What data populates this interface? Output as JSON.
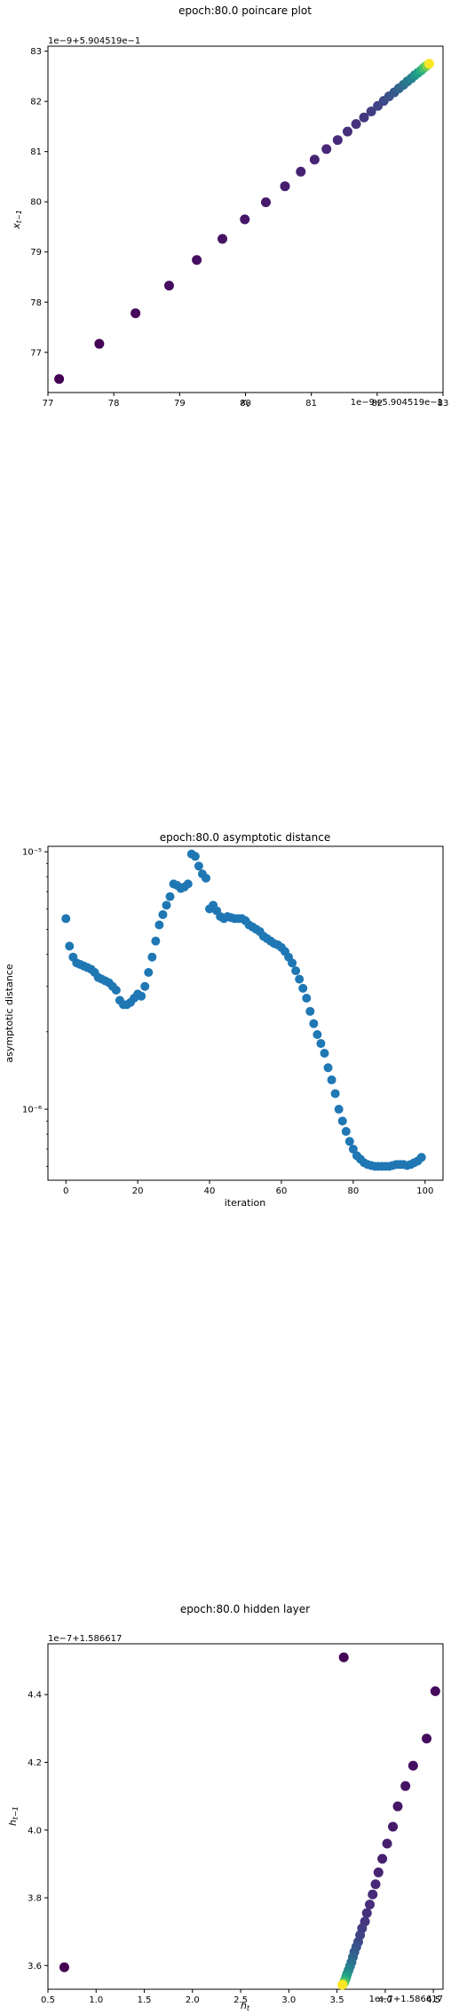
{
  "chart_data": [
    {
      "type": "scatter",
      "title": "epoch:80.0 poincare plot",
      "xlabel": "x_t",
      "ylabel": "x_{t-1}",
      "offset_text_x": "1e−9+5.904519e−1",
      "offset_text_y": "1e−9+5.904519e−1",
      "xlim": [
        77.0,
        83.0
      ],
      "ylim": [
        76.2,
        83.1
      ],
      "xticks": [
        77,
        78,
        79,
        80,
        81,
        82,
        83
      ],
      "yticks": [
        77,
        78,
        79,
        80,
        81,
        82,
        83
      ],
      "grid": false,
      "colormap": "viridis",
      "points": [
        {
          "x": 77.17,
          "y": 76.47,
          "c": 0.0
        },
        {
          "x": 77.78,
          "y": 77.17,
          "c": 0.01
        },
        {
          "x": 78.33,
          "y": 77.78,
          "c": 0.02
        },
        {
          "x": 78.84,
          "y": 78.33,
          "c": 0.03
        },
        {
          "x": 79.26,
          "y": 78.84,
          "c": 0.04
        },
        {
          "x": 79.65,
          "y": 79.26,
          "c": 0.05
        },
        {
          "x": 79.99,
          "y": 79.65,
          "c": 0.06
        },
        {
          "x": 80.31,
          "y": 79.99,
          "c": 0.07
        },
        {
          "x": 80.6,
          "y": 80.31,
          "c": 0.08
        },
        {
          "x": 80.84,
          "y": 80.6,
          "c": 0.09
        },
        {
          "x": 81.05,
          "y": 80.84,
          "c": 0.1
        },
        {
          "x": 81.23,
          "y": 81.05,
          "c": 0.11
        },
        {
          "x": 81.4,
          "y": 81.23,
          "c": 0.12
        },
        {
          "x": 81.55,
          "y": 81.4,
          "c": 0.13
        },
        {
          "x": 81.68,
          "y": 81.55,
          "c": 0.14
        },
        {
          "x": 81.8,
          "y": 81.68,
          "c": 0.16
        },
        {
          "x": 81.91,
          "y": 81.8,
          "c": 0.18
        },
        {
          "x": 82.01,
          "y": 81.91,
          "c": 0.2
        },
        {
          "x": 82.1,
          "y": 82.01,
          "c": 0.22
        },
        {
          "x": 82.18,
          "y": 82.1,
          "c": 0.25
        },
        {
          "x": 82.26,
          "y": 82.18,
          "c": 0.28
        },
        {
          "x": 82.33,
          "y": 82.26,
          "c": 0.32
        },
        {
          "x": 82.4,
          "y": 82.33,
          "c": 0.36
        },
        {
          "x": 82.46,
          "y": 82.4,
          "c": 0.4
        },
        {
          "x": 82.52,
          "y": 82.46,
          "c": 0.45
        },
        {
          "x": 82.57,
          "y": 82.52,
          "c": 0.5
        },
        {
          "x": 82.62,
          "y": 82.57,
          "c": 0.56
        },
        {
          "x": 82.67,
          "y": 82.62,
          "c": 0.62
        },
        {
          "x": 82.71,
          "y": 82.67,
          "c": 0.7
        },
        {
          "x": 82.75,
          "y": 82.71,
          "c": 0.8
        },
        {
          "x": 82.79,
          "y": 82.75,
          "c": 1.0
        }
      ]
    },
    {
      "type": "scatter",
      "title": "epoch:80.0 asymptotic distance",
      "xlabel": "iteration",
      "ylabel": "asymptotic distance",
      "yscale": "log",
      "xlim": [
        -5,
        105
      ],
      "ylim": [
        5.3e-07,
        1.05e-05
      ],
      "xticks": [
        0,
        20,
        40,
        60,
        80,
        100
      ],
      "ytick_labels": [
        "10⁻⁶",
        "10⁻⁵"
      ],
      "grid": false,
      "color": "#1f77b4",
      "x": [
        0,
        1,
        2,
        3,
        4,
        5,
        6,
        7,
        8,
        9,
        10,
        11,
        12,
        13,
        14,
        15,
        16,
        17,
        18,
        19,
        20,
        21,
        22,
        23,
        24,
        25,
        26,
        27,
        28,
        29,
        30,
        31,
        32,
        33,
        34,
        35,
        36,
        37,
        38,
        39,
        40,
        41,
        42,
        43,
        44,
        45,
        46,
        47,
        48,
        49,
        50,
        51,
        52,
        53,
        54,
        55,
        56,
        57,
        58,
        59,
        60,
        61,
        62,
        63,
        64,
        65,
        66,
        67,
        68,
        69,
        70,
        71,
        72,
        73,
        74,
        75,
        76,
        77,
        78,
        79,
        80,
        81,
        82,
        83,
        84,
        85,
        86,
        87,
        88,
        89,
        90,
        91,
        92,
        93,
        94,
        95,
        96,
        97,
        98,
        99
      ],
      "y": [
        5.5e-06,
        4.3e-06,
        3.9e-06,
        3.7e-06,
        3.65e-06,
        3.6e-06,
        3.55e-06,
        3.5e-06,
        3.4e-06,
        3.25e-06,
        3.2e-06,
        3.15e-06,
        3.1e-06,
        3e-06,
        2.9e-06,
        2.65e-06,
        2.55e-06,
        2.55e-06,
        2.6e-06,
        2.7e-06,
        2.8e-06,
        2.75e-06,
        3e-06,
        3.4e-06,
        3.9e-06,
        4.5e-06,
        5.2e-06,
        5.7e-06,
        6.2e-06,
        6.7e-06,
        7.5e-06,
        7.4e-06,
        7.2e-06,
        7.3e-06,
        7.5e-06,
        9.8e-06,
        9.6e-06,
        8.8e-06,
        8.2e-06,
        7.9e-06,
        6e-06,
        6.2e-06,
        5.9e-06,
        5.6e-06,
        5.5e-06,
        5.6e-06,
        5.55e-06,
        5.5e-06,
        5.5e-06,
        5.5e-06,
        5.4e-06,
        5.2e-06,
        5.1e-06,
        5e-06,
        4.9e-06,
        4.7e-06,
        4.6e-06,
        4.5e-06,
        4.4e-06,
        4.35e-06,
        4.25e-06,
        4.1e-06,
        3.9e-06,
        3.7e-06,
        3.45e-06,
        3.2e-06,
        2.95e-06,
        2.7e-06,
        2.4e-06,
        2.15e-06,
        1.95e-06,
        1.8e-06,
        1.65e-06,
        1.45e-06,
        1.3e-06,
        1.15e-06,
        1e-06,
        9e-07,
        8.2e-07,
        7.5e-07,
        7e-07,
        6.6e-07,
        6.4e-07,
        6.2e-07,
        6.1e-07,
        6.05e-07,
        6e-07,
        6e-07,
        6e-07,
        6e-07,
        6e-07,
        6.05e-07,
        6.1e-07,
        6.1e-07,
        6.1e-07,
        6.05e-07,
        6.1e-07,
        6.2e-07,
        6.3e-07,
        6.5e-07
      ]
    },
    {
      "type": "scatter",
      "title": "epoch:80.0 hidden layer",
      "xlabel": "h_t",
      "ylabel": "h_{t-1}",
      "offset_text_x": "1e−7+1.586617",
      "offset_text_y": "1e−7+1.586617",
      "xlim": [
        0.5,
        4.6
      ],
      "ylim": [
        3.53,
        4.55
      ],
      "xticks": [
        0.5,
        1.0,
        1.5,
        2.0,
        2.5,
        3.0,
        3.5,
        4.0,
        4.5
      ],
      "xtick_labels": [
        "0.5",
        "1.0",
        "1.5",
        "2.0",
        "2.5",
        "3.0",
        "3.5",
        "4.0",
        "4.5"
      ],
      "yticks": [
        3.6,
        3.8,
        4.0,
        4.2,
        4.4
      ],
      "ytick_labels": [
        "3.6",
        "3.8",
        "4.0",
        "4.2",
        "4.4"
      ],
      "grid": false,
      "colormap": "viridis",
      "points": [
        {
          "x": 0.67,
          "y": 3.595,
          "c": 0.0
        },
        {
          "x": 3.57,
          "y": 4.51,
          "c": 0.01
        },
        {
          "x": 4.52,
          "y": 4.41,
          "c": 0.02
        },
        {
          "x": 4.43,
          "y": 4.27,
          "c": 0.03
        },
        {
          "x": 4.29,
          "y": 4.19,
          "c": 0.04
        },
        {
          "x": 4.21,
          "y": 4.13,
          "c": 0.05
        },
        {
          "x": 4.13,
          "y": 4.07,
          "c": 0.06
        },
        {
          "x": 4.08,
          "y": 4.01,
          "c": 0.07
        },
        {
          "x": 4.02,
          "y": 3.96,
          "c": 0.08
        },
        {
          "x": 3.97,
          "y": 3.915,
          "c": 0.09
        },
        {
          "x": 3.93,
          "y": 3.875,
          "c": 0.1
        },
        {
          "x": 3.9,
          "y": 3.84,
          "c": 0.11
        },
        {
          "x": 3.87,
          "y": 3.81,
          "c": 0.12
        },
        {
          "x": 3.84,
          "y": 3.78,
          "c": 0.13
        },
        {
          "x": 3.81,
          "y": 3.755,
          "c": 0.14
        },
        {
          "x": 3.79,
          "y": 3.73,
          "c": 0.16
        },
        {
          "x": 3.76,
          "y": 3.71,
          "c": 0.18
        },
        {
          "x": 3.74,
          "y": 3.69,
          "c": 0.2
        },
        {
          "x": 3.72,
          "y": 3.67,
          "c": 0.22
        },
        {
          "x": 3.7,
          "y": 3.655,
          "c": 0.25
        },
        {
          "x": 3.68,
          "y": 3.64,
          "c": 0.28
        },
        {
          "x": 3.665,
          "y": 3.625,
          "c": 0.32
        },
        {
          "x": 3.65,
          "y": 3.61,
          "c": 0.36
        },
        {
          "x": 3.635,
          "y": 3.598,
          "c": 0.4
        },
        {
          "x": 3.62,
          "y": 3.586,
          "c": 0.45
        },
        {
          "x": 3.605,
          "y": 3.575,
          "c": 0.5
        },
        {
          "x": 3.595,
          "y": 3.566,
          "c": 0.56
        },
        {
          "x": 3.585,
          "y": 3.558,
          "c": 0.62
        },
        {
          "x": 3.575,
          "y": 3.551,
          "c": 0.7
        },
        {
          "x": 3.565,
          "y": 3.546,
          "c": 0.8
        },
        {
          "x": 3.555,
          "y": 3.543,
          "c": 1.0
        }
      ]
    }
  ]
}
